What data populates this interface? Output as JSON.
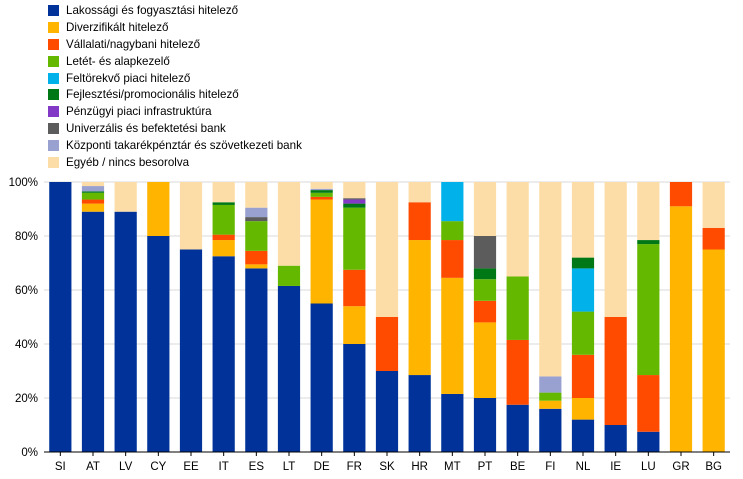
{
  "chart_data": {
    "type": "bar",
    "stacked": true,
    "categories": [
      "SI",
      "AT",
      "LV",
      "CY",
      "EE",
      "IT",
      "ES",
      "LT",
      "DE",
      "FR",
      "SK",
      "HR",
      "MT",
      "PT",
      "BE",
      "FI",
      "NL",
      "IE",
      "LU",
      "GR",
      "BG"
    ],
    "ylim": [
      0,
      100
    ],
    "yticks": [
      0,
      20,
      40,
      60,
      80,
      100
    ],
    "ytick_labels": [
      "0%",
      "20%",
      "40%",
      "60%",
      "80%",
      "100%"
    ],
    "grid": "horizontal",
    "legend_position": "top-left",
    "series": [
      {
        "name": "Lakossági és fogyasztási hitelező",
        "color": "#003299",
        "values": [
          100,
          89,
          89,
          80,
          75,
          72.5,
          68,
          61.5,
          55,
          40,
          30,
          28.5,
          21.5,
          20,
          17.5,
          16,
          12,
          10,
          7.5,
          0,
          0
        ]
      },
      {
        "name": "Diverzifikált hitelező",
        "color": "#FFB400",
        "values": [
          0,
          3,
          0,
          20,
          0,
          6,
          1.5,
          0,
          38.5,
          14,
          0,
          50,
          43,
          28,
          0,
          3,
          8,
          0,
          0,
          91,
          75
        ]
      },
      {
        "name": "Vállalati/nagybani hitelező",
        "color": "#FF4B00",
        "values": [
          0,
          1.5,
          0,
          0,
          0,
          2,
          5,
          0,
          1,
          13.5,
          20,
          14,
          14,
          8,
          24,
          0,
          16,
          40,
          21,
          9,
          8
        ]
      },
      {
        "name": "Letét- és alapkezelő",
        "color": "#65B800",
        "values": [
          0,
          2.5,
          0,
          0,
          0,
          11,
          11,
          7.5,
          1.5,
          23,
          0,
          0,
          7,
          8,
          23.5,
          3,
          16,
          0,
          48.5,
          0,
          0
        ]
      },
      {
        "name": "Feltörekvő piaci hitelező",
        "color": "#00B1EA",
        "values": [
          0,
          0,
          0,
          0,
          0,
          0,
          0,
          0,
          0,
          0,
          0,
          0,
          14.5,
          0,
          0,
          0,
          16,
          0,
          0,
          0,
          0
        ]
      },
      {
        "name": "Fejlesztési/promocionális hitelező",
        "color": "#007816",
        "values": [
          0,
          0.5,
          0,
          0,
          0,
          1,
          0,
          0,
          1,
          1.5,
          0,
          0,
          0,
          4,
          0,
          0,
          4,
          0,
          1.5,
          0,
          0
        ]
      },
      {
        "name": "Pénzügyi piaci infrastruktúra",
        "color": "#8139C6",
        "values": [
          0,
          0,
          0,
          0,
          0,
          0,
          0,
          0,
          0,
          1.5,
          0,
          0,
          0,
          0,
          0,
          0,
          0,
          0,
          0,
          0,
          0
        ]
      },
      {
        "name": "Univerzális és befektetési bank",
        "color": "#5C5C5C",
        "values": [
          0,
          0,
          0,
          0,
          0,
          0,
          1.5,
          0,
          0,
          0.5,
          0,
          0,
          0,
          12,
          0,
          0,
          0,
          0,
          0,
          0,
          0
        ]
      },
      {
        "name": "Központi takarékpénztár és szövetkezeti bank",
        "color": "#98A1D0",
        "values": [
          0,
          2,
          0,
          0,
          0,
          0,
          3.5,
          0,
          0.5,
          0,
          0,
          0,
          0,
          0,
          0,
          6,
          0,
          0,
          0,
          0,
          0
        ]
      },
      {
        "name": "Egyéb / nincs besorolva",
        "color": "#FDDDA7",
        "values": [
          0,
          1.5,
          11,
          0,
          25,
          7.5,
          9.5,
          31,
          2.5,
          6,
          50,
          7.5,
          0,
          20,
          35,
          72,
          28,
          50,
          21.5,
          0,
          17
        ]
      }
    ]
  }
}
